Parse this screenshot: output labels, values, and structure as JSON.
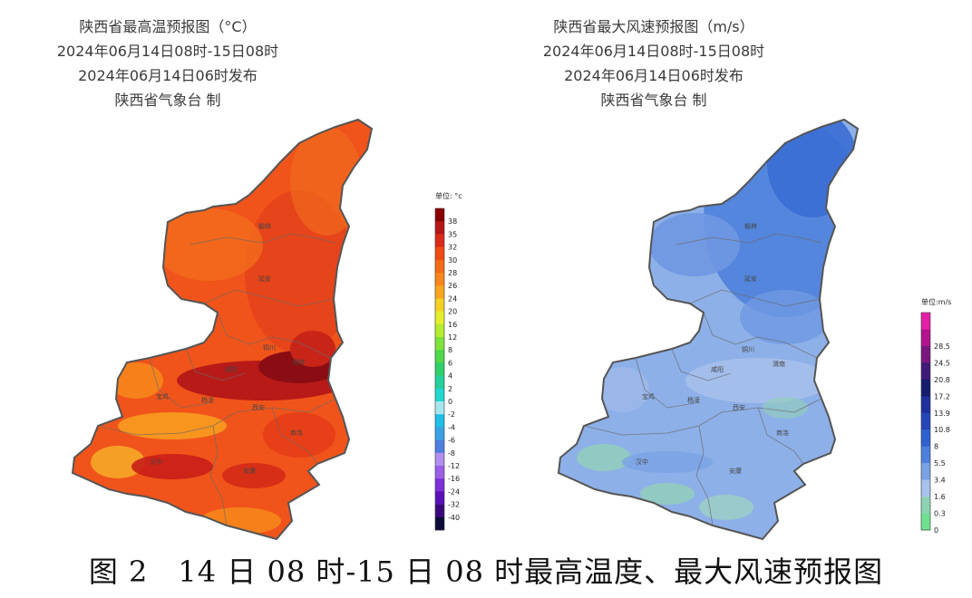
{
  "left_panel": {
    "title": "陕西省最高温预报图（°C）",
    "period": "2024年06月14日08时-15日08时",
    "issued": "2024年06月14日06时发布",
    "producer": "陕西省气象台 制",
    "legend_unit": "单位: °c",
    "legend": [
      {
        "label": "38",
        "color": "#8b0000"
      },
      {
        "label": "35",
        "color": "#b51616"
      },
      {
        "label": "32",
        "color": "#d92a1a"
      },
      {
        "label": "30",
        "color": "#ee4a14"
      },
      {
        "label": "28",
        "color": "#f56a16"
      },
      {
        "label": "26",
        "color": "#f8861a"
      },
      {
        "label": "24",
        "color": "#f9a51f"
      },
      {
        "label": "20",
        "color": "#f4cf25"
      },
      {
        "label": "16",
        "color": "#e6ef2c"
      },
      {
        "label": "12",
        "color": "#b5ec32"
      },
      {
        "label": "8",
        "color": "#7ee33c"
      },
      {
        "label": "6",
        "color": "#4fd84a"
      },
      {
        "label": "4",
        "color": "#2fcf6a"
      },
      {
        "label": "2",
        "color": "#23cf9c"
      },
      {
        "label": "0",
        "color": "#22d7cf"
      },
      {
        "label": "-2",
        "color": "#a8e6ef"
      },
      {
        "label": "-4",
        "color": "#1fbfe8"
      },
      {
        "label": "-6",
        "color": "#3aa2e6"
      },
      {
        "label": "-8",
        "color": "#4e7fe0"
      },
      {
        "label": "-12",
        "color": "#b28ff0"
      },
      {
        "label": "-16",
        "color": "#9a5fe6"
      },
      {
        "label": "-24",
        "color": "#7d2fd8"
      },
      {
        "label": "-32",
        "color": "#5a10b8"
      },
      {
        "label": "-40",
        "color": "#3a0a7c"
      },
      {
        "label": "",
        "color": "#0c0c3a"
      }
    ],
    "cities": [
      "榆林",
      "延安",
      "铜川",
      "咸阳",
      "渭南",
      "宝鸡",
      "杨凌",
      "西安",
      "汉中",
      "商洛",
      "安康"
    ]
  },
  "right_panel": {
    "title": "陕西省最大风速预报图（m/s）",
    "period": "2024年06月14日08时-15日08时",
    "issued": "2024年06月14日06时发布",
    "producer": "陕西省气象台 制",
    "legend_unit": "单位:m/s",
    "legend": [
      {
        "label": "",
        "color": "#e51fa8"
      },
      {
        "label": "28.5",
        "color": "#b4138f"
      },
      {
        "label": "24.5",
        "color": "#7a1880"
      },
      {
        "label": "20.8",
        "color": "#3f1a78"
      },
      {
        "label": "17.2",
        "color": "#161d6e"
      },
      {
        "label": "13.9",
        "color": "#1e2f9e"
      },
      {
        "label": "10.8",
        "color": "#2546b8"
      },
      {
        "label": "8",
        "color": "#2f62d0"
      },
      {
        "label": "5.5",
        "color": "#4d80dc"
      },
      {
        "label": "3.4",
        "color": "#7aa2e4"
      },
      {
        "label": "1.6",
        "color": "#a8c2ec"
      },
      {
        "label": "0.3",
        "color": "#8ed2b4"
      },
      {
        "label": "0",
        "color": "#6fe090"
      }
    ],
    "cities": [
      "榆林",
      "延安",
      "铜川",
      "咸阳",
      "渭南",
      "宝鸡",
      "杨凌",
      "西安",
      "汉中",
      "商洛",
      "安康"
    ]
  },
  "caption": "图 2　14 日 08 时-15 日 08 时最高温度、最大风速预报图",
  "colors": {
    "temp_base": "#f0541a",
    "temp_hot": "#a8141a",
    "temp_mid": "#f78a1c",
    "wind_base": "#7aa2e4",
    "wind_north": "#3b70d6",
    "wind_low": "#8fd0b8",
    "outline": "#555555"
  }
}
